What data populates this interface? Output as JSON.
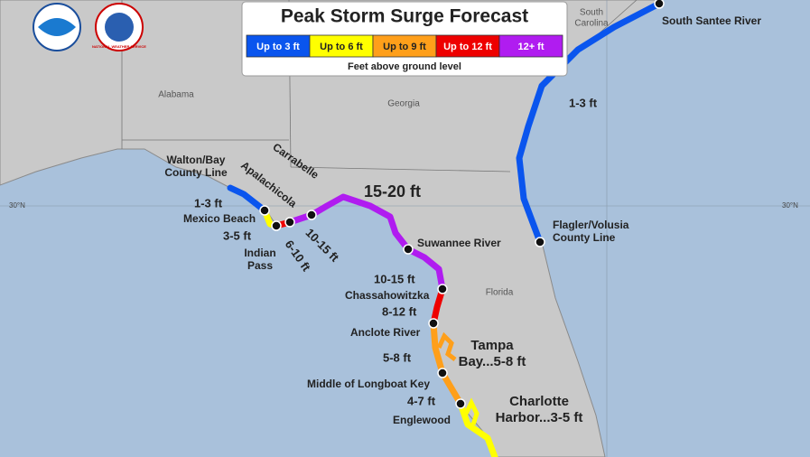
{
  "header": {
    "title": "Peak Storm Surge Forecast",
    "subtitle": "Feet above ground level"
  },
  "logos": {
    "noaa": "NOAA",
    "nws": "NATIONAL WEATHER SERVICE"
  },
  "legend": [
    {
      "label": "Up to 3 ft",
      "color": "#0a55ee"
    },
    {
      "label": "Up to 6 ft",
      "color": "#ffff00"
    },
    {
      "label": "Up to 9 ft",
      "color": "#ff9f1a"
    },
    {
      "label": "Up to 12 ft",
      "color": "#ee0000"
    },
    {
      "label": "12+ ft",
      "color": "#b01cf0"
    }
  ],
  "places": [
    {
      "lines": [
        "South Santee River"
      ]
    },
    {
      "lines": [
        "Flagler/Volusia",
        "County Line"
      ]
    },
    {
      "lines": [
        "Walton/Bay",
        "County Line"
      ]
    },
    {
      "lines": [
        "Apalachicola"
      ]
    },
    {
      "lines": [
        "Carrabelle"
      ]
    },
    {
      "lines": [
        "Mexico Beach"
      ]
    },
    {
      "lines": [
        "Indian",
        "Pass"
      ]
    },
    {
      "lines": [
        "Suwannee River"
      ]
    },
    {
      "lines": [
        "Chassahowitzka"
      ]
    },
    {
      "lines": [
        "Anclote River"
      ]
    },
    {
      "lines": [
        "Middle of Longboat Key"
      ]
    },
    {
      "lines": [
        "Englewood"
      ]
    }
  ],
  "surges": [
    "1-3 ft",
    "1-3 ft",
    "3-5 ft",
    "6-10 ft",
    "10-15 ft",
    "15-20 ft",
    "10-15 ft",
    "8-12 ft",
    "5-8 ft",
    "4-7 ft"
  ],
  "bays": [
    {
      "lines": [
        "Tampa",
        "Bay...5-8 ft"
      ]
    },
    {
      "lines": [
        "Charlotte",
        "Harbor...3-5 ft"
      ]
    }
  ],
  "states": [
    {
      "lines": [
        "Alabama"
      ]
    },
    {
      "lines": [
        "Georgia"
      ]
    },
    {
      "lines": [
        "South",
        "Carolina"
      ]
    },
    {
      "lines": [
        "Florida"
      ]
    }
  ],
  "graticule": [
    "30°N",
    "30°N"
  ]
}
